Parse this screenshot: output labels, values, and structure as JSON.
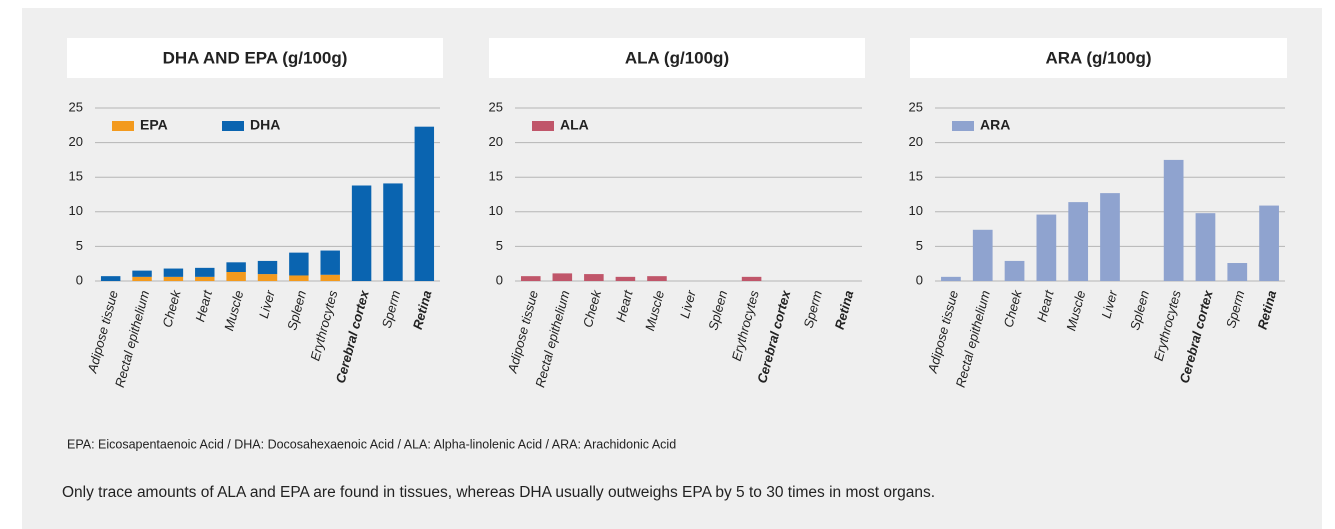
{
  "chart_data": [
    {
      "type": "bar",
      "stacked": true,
      "title": "DHA AND EPA (g/100g)",
      "categories": [
        "Adipose tissue",
        "Rectal epithelium",
        "Cheek",
        "Heart",
        "Muscle",
        "Liver",
        "Spleen",
        "Erythrocytes",
        "Cerebral cortex",
        "Sperm",
        "Retina"
      ],
      "bold_categories": [
        8,
        10
      ],
      "series": [
        {
          "name": "EPA",
          "color": "#f39a1e",
          "values": [
            0,
            0.6,
            0.6,
            0.6,
            1.3,
            1.0,
            0.8,
            0.9,
            0,
            0,
            0
          ]
        },
        {
          "name": "DHA",
          "color": "#0a64b0",
          "values": [
            0.7,
            0.9,
            1.2,
            1.3,
            1.4,
            1.9,
            3.3,
            3.5,
            13.8,
            14.1,
            22.3
          ]
        }
      ],
      "ylim": [
        0,
        25
      ],
      "yticks": [
        0,
        5,
        10,
        15,
        20,
        25
      ],
      "grid": true,
      "legend": "upper left"
    },
    {
      "type": "bar",
      "stacked": true,
      "title": "ALA (g/100g)",
      "categories": [
        "Adipose tissue",
        "Rectal epithelium",
        "Cheek",
        "Heart",
        "Muscle",
        "Liver",
        "Spleen",
        "Erythrocytes",
        "Cerebral cortex",
        "Sperm",
        "Retina"
      ],
      "bold_categories": [
        8,
        10
      ],
      "series": [
        {
          "name": "ALA",
          "color": "#c0566a",
          "values": [
            0.7,
            1.1,
            1.0,
            0.6,
            0.7,
            0,
            0,
            0.6,
            0,
            0,
            0
          ]
        }
      ],
      "ylim": [
        0,
        25
      ],
      "yticks": [
        0,
        5,
        10,
        15,
        20,
        25
      ],
      "grid": true,
      "legend": "upper left"
    },
    {
      "type": "bar",
      "stacked": true,
      "title": "ARA (g/100g)",
      "categories": [
        "Adipose tissue",
        "Rectal epithelium",
        "Cheek",
        "Heart",
        "Muscle",
        "Liver",
        "Spleen",
        "Erythrocytes",
        "Cerebral cortex",
        "Sperm",
        "Retina"
      ],
      "bold_categories": [
        8,
        10
      ],
      "series": [
        {
          "name": "ARA",
          "color": "#8fa3cf",
          "values": [
            0.6,
            7.4,
            2.9,
            9.6,
            11.4,
            12.7,
            0,
            17.5,
            9.8,
            2.6,
            10.9
          ]
        }
      ],
      "ylim": [
        0,
        25
      ],
      "yticks": [
        0,
        5,
        10,
        15,
        20,
        25
      ],
      "grid": true,
      "legend": "upper left"
    }
  ],
  "footnote": "EPA: Eicosapentaenoic Acid / DHA: Docosahexaenoic Acid / ALA: Alpha-linolenic Acid / ARA: Arachidonic Acid",
  "caption": "Only trace amounts of ALA and EPA are found in tissues, whereas DHA usually outweighs EPA by 5 to 30 times in most organs."
}
